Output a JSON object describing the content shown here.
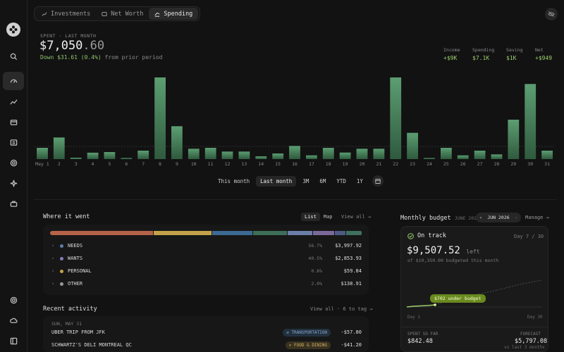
{
  "tabs": [
    {
      "label": "Investments",
      "icon": "trend-up-icon",
      "active": false
    },
    {
      "label": "Net Worth",
      "icon": "wallet-icon",
      "active": false
    },
    {
      "label": "Spending",
      "icon": "spending-icon",
      "active": true
    }
  ],
  "summary": {
    "label": "SPENT · LAST MONTH",
    "amount_main": "$7,050",
    "amount_cents": ".60",
    "delta": "Down $31.61 (0.4%)",
    "delta_suffix": " from prior period"
  },
  "stats": [
    {
      "label": "Income",
      "value": "+$9K"
    },
    {
      "label": "Spending",
      "value": "$7.1K"
    },
    {
      "label": "Saving",
      "value": "$1K"
    },
    {
      "label": "Net",
      "value": "+$949"
    }
  ],
  "chart_data": {
    "type": "bar",
    "categories": [
      "May 1",
      "2",
      "3",
      "4",
      "5",
      "6",
      "7",
      "8",
      "9",
      "10",
      "11",
      "12",
      "13",
      "14",
      "15",
      "16",
      "17",
      "18",
      "19",
      "20",
      "21",
      "22",
      "23",
      "24",
      "25",
      "26",
      "27",
      "28",
      "29",
      "30",
      "31"
    ],
    "values": [
      120,
      230,
      15,
      68,
      75,
      10,
      90,
      870,
      350,
      110,
      120,
      80,
      80,
      30,
      60,
      140,
      40,
      120,
      70,
      110,
      110,
      870,
      280,
      10,
      120,
      40,
      90,
      50,
      420,
      800,
      90
    ],
    "ylim": [
      0,
      900
    ],
    "color": "#4a8a60"
  },
  "range": {
    "options": [
      "This month",
      "Last month",
      "3M",
      "6M",
      "YTD",
      "1Y"
    ],
    "active": 1
  },
  "where": {
    "title": "Where it went",
    "toggle": [
      "List",
      "Map"
    ],
    "view_all": "View all →",
    "segments": [
      {
        "color": "#b5634a",
        "share": 33.5
      },
      {
        "color": "#c4a24a",
        "share": 19
      },
      {
        "color": "#3d6a94",
        "share": 13
      },
      {
        "color": "#3e6e58",
        "share": 11
      },
      {
        "color": "#6b7ea8",
        "share": 8
      },
      {
        "color": "#7a6a9a",
        "share": 7
      },
      {
        "color": "#4e5a86",
        "share": 3.5
      },
      {
        "color": "#3e7060",
        "share": 5
      }
    ],
    "categories": [
      {
        "name": "NEEDS",
        "dot": "#5b7fa8",
        "pct": "56.7%",
        "amount": "$3,997.92"
      },
      {
        "name": "WANTS",
        "dot": "#8a7ab8",
        "pct": "40.5%",
        "amount": "$2,853.93"
      },
      {
        "name": "PERSONAL",
        "dot": "#c4a24a",
        "pct": "0.8%",
        "amount": "$59.84"
      },
      {
        "name": "OTHER",
        "dot": "#9a9a9a",
        "pct": "2.0%",
        "amount": "$138.91"
      }
    ]
  },
  "activity": {
    "title": "Recent activity",
    "view_all": "View all · 6 to tag →",
    "date": "SUN, MAY 31",
    "items": [
      {
        "desc": "UBER TRIP FROM JFK",
        "tag": "TRANSPORTATION",
        "tag_color": "#5b7fa8",
        "tag_bg": "#22303e",
        "amount": "-$57.80"
      },
      {
        "desc": "SCHWARTZ'S DELI MONTREAL QC",
        "tag": "FOOD & DINING",
        "tag_color": "#c4a24a",
        "tag_bg": "#3a3220",
        "amount": "-$41.20"
      }
    ]
  },
  "budget": {
    "title": "Monthly budget",
    "month_label": "JUNE 2026",
    "month_sel": "JUN 2026",
    "manage": "Manage →",
    "status": "On track",
    "day": "Day 7 / 30",
    "left_amount": "$9,507.52",
    "left_word": "left",
    "budgeted": "of $10,350.00 budgeted this month",
    "under": "$702 under budget",
    "axis_start": "Day 1",
    "axis_end": "Day 30",
    "spent_label": "SPENT SO FAR",
    "spent_value": "$842.48",
    "forecast_label": "FORECAST",
    "forecast_value": "$5,797.08",
    "forecast_sub": "vs last 3 months"
  }
}
